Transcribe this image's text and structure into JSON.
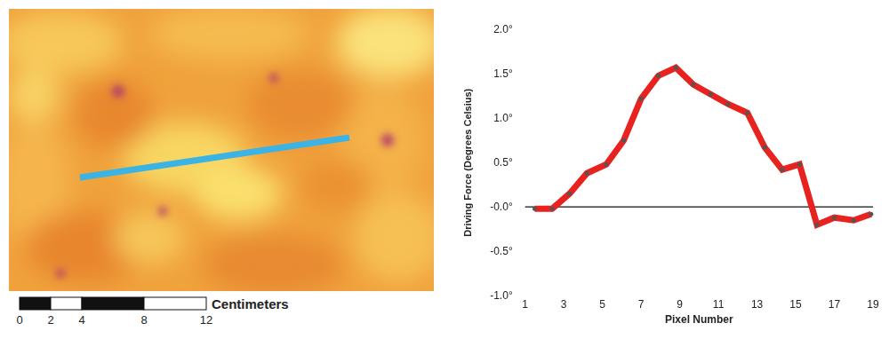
{
  "chart_data": {
    "type": "line",
    "x_label": "Pixel Number",
    "y_label": "Driving Force (Degrees Celsius)",
    "x": [
      1.5,
      2.4,
      3.3,
      4.2,
      5.2,
      6.1,
      7.0,
      7.9,
      8.8,
      9.7,
      10.6,
      11.5,
      12.5,
      13.4,
      14.3,
      15.2,
      16.1,
      17.0,
      18.0,
      18.9
    ],
    "values": [
      -0.02,
      -0.02,
      0.15,
      0.38,
      0.48,
      0.75,
      1.22,
      1.48,
      1.57,
      1.38,
      1.27,
      1.16,
      1.06,
      0.67,
      0.42,
      0.48,
      -0.2,
      -0.12,
      -0.15,
      -0.08
    ],
    "color": "#e8231f",
    "marker": "circle",
    "xlim": [
      1,
      19
    ],
    "xticks": [
      1,
      3,
      5,
      7,
      9,
      11,
      13,
      15,
      17,
      19
    ],
    "ylim": [
      -1,
      2
    ],
    "yticks": [
      {
        "value": -1,
        "label": "-1.0°"
      },
      {
        "value": -0.5,
        "label": "-0.5°"
      },
      {
        "value": 0,
        "label": "-0.0°"
      },
      {
        "value": 0.5,
        "label": "0.5°"
      },
      {
        "value": 1,
        "label": "1.0°"
      },
      {
        "value": 1.5,
        "label": "1.5°"
      },
      {
        "value": 2,
        "label": "2.0°"
      }
    ],
    "grid": false
  },
  "image": {
    "scale_bar": {
      "label": "Centimeters",
      "ticks": [
        0,
        2,
        4,
        8,
        12
      ]
    }
  }
}
